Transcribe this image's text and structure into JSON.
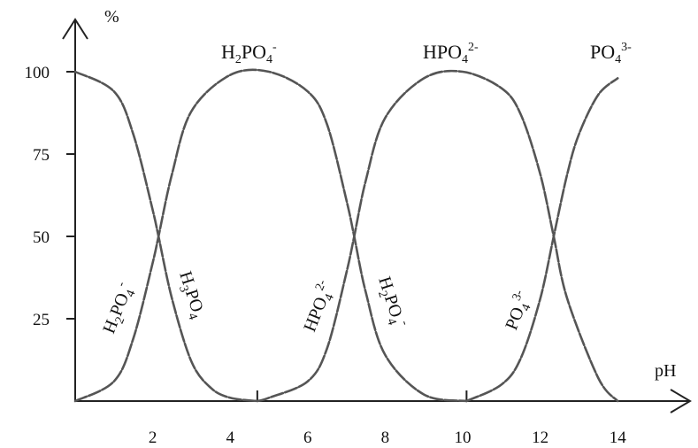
{
  "chart_data": {
    "type": "line",
    "xlabel": "pH",
    "ylabel": "%",
    "xlim": [
      0,
      15.3
    ],
    "ylim": [
      0,
      110
    ],
    "x_ticks": [
      2,
      4,
      6,
      8,
      10,
      12,
      14
    ],
    "y_ticks": [
      25,
      50,
      75,
      100
    ],
    "grid": false,
    "pKa": [
      2.15,
      7.2,
      12.35
    ],
    "x_range": [
      0,
      14
    ],
    "series": [
      {
        "species": "H3PO4",
        "x": [
          0,
          1,
          1.5,
          2,
          2.15,
          2.5,
          3,
          3.5,
          4,
          4.7
        ],
        "values": [
          100,
          94,
          81,
          58,
          50,
          31,
          12,
          4,
          1,
          0
        ]
      },
      {
        "species": "H2PO4-",
        "x": [
          0,
          1,
          1.5,
          2,
          2.15,
          2.5,
          3,
          4,
          5,
          6,
          6.5,
          7,
          7.2,
          7.5,
          8,
          9,
          10.1
        ],
        "values": [
          0,
          6,
          19,
          42,
          50,
          69,
          88,
          99,
          100,
          94,
          84,
          61,
          50,
          33,
          14,
          2,
          0
        ]
      },
      {
        "species": "HPO4 2-",
        "x": [
          4.7,
          5,
          6,
          6.5,
          7,
          7.2,
          7.5,
          8,
          9,
          10,
          11,
          11.5,
          12,
          12.35,
          12.7,
          13.5,
          14
        ],
        "values": [
          0,
          1,
          6,
          16,
          39,
          50,
          67,
          86,
          98,
          100,
          95,
          87,
          69,
          50,
          31,
          7,
          0
        ]
      },
      {
        "species": "PO4 3-",
        "x": [
          10.1,
          11,
          11.5,
          12,
          12.35,
          12.7,
          13,
          13.5,
          14
        ],
        "values": [
          0,
          5,
          13,
          31,
          50,
          69,
          81,
          93,
          98
        ]
      }
    ],
    "labels": {
      "top": [
        {
          "base": "H",
          "sub": "2",
          "mid": "PO",
          "sub2": "4",
          "sup": "-"
        },
        {
          "base": "HPO",
          "sub": "4",
          "mid": "",
          "sub2": "",
          "sup": "2-"
        },
        {
          "base": "PO",
          "sub": "4",
          "mid": "",
          "sub2": "",
          "sup": "3-"
        }
      ],
      "curve": [
        {
          "base": "H",
          "sub": "2",
          "mid": "PO",
          "sub2": "4",
          "sup": "-"
        },
        {
          "base": "H",
          "sub": "3",
          "mid": "PO",
          "sub2": "4",
          "sup": ""
        },
        {
          "base": "HPO",
          "sub": "4",
          "mid": "",
          "sub2": "",
          "sup": "2-"
        },
        {
          "base": "H",
          "sub": "2",
          "mid": "PO",
          "sub2": "4",
          "sup": "-"
        },
        {
          "base": "PO",
          "sub": "4",
          "mid": "",
          "sub2": "",
          "sup": "3-"
        }
      ]
    }
  }
}
